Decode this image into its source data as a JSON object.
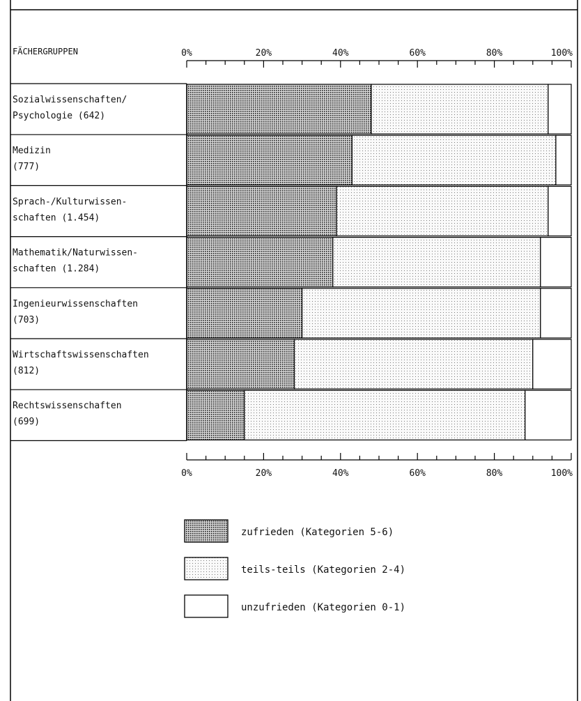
{
  "chart_data": {
    "type": "bar",
    "stacked": true,
    "orientation": "horizontal",
    "category_header": "FÄCHERGRUPPEN",
    "x_ticks": [
      "0%",
      "20%",
      "40%",
      "60%",
      "80%",
      "100%"
    ],
    "xlim": [
      0,
      100
    ],
    "categories": [
      [
        "Sozialwissenschaften/",
        "Psychologie (642)"
      ],
      [
        "Medizin",
        "(777)"
      ],
      [
        "Sprach-/Kulturwissen-",
        "schaften (1.454)"
      ],
      [
        "Mathematik/Naturwissen-",
        "schaften (1.284)"
      ],
      [
        "Ingenieurwissenschaften",
        "(703)"
      ],
      [
        "Wirtschaftswissenschaften",
        "(812)"
      ],
      [
        "Rechtswissenschaften",
        "(699)"
      ]
    ],
    "series": [
      {
        "name": "zufrieden (Kategorien 5-6)",
        "pattern": "dense",
        "values": [
          48,
          43,
          39,
          38,
          30,
          28,
          15
        ]
      },
      {
        "name": "teils-teils (Kategorien 2-4)",
        "pattern": "light",
        "values": [
          46,
          53,
          55,
          54,
          62,
          62,
          73
        ]
      },
      {
        "name": "unzufrieden (Kategorien 0-1)",
        "pattern": "none",
        "values": [
          6,
          4,
          6,
          8,
          8,
          10,
          12
        ]
      }
    ],
    "legend_position": "bottom",
    "grid": false
  }
}
